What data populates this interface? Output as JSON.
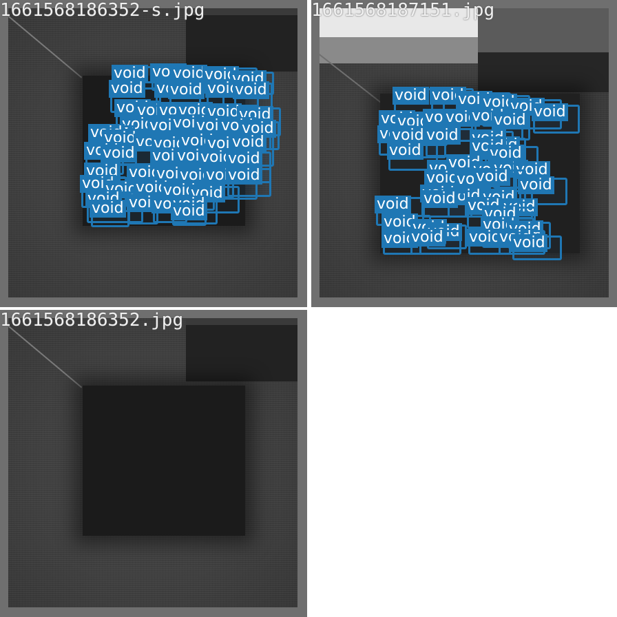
{
  "label_text": "void",
  "annotation_color": "#1f77b4",
  "tiles": [
    {
      "title": "1661568186352-s.jpg"
    },
    {
      "title": "1661568187151.jpg"
    },
    {
      "title": "1661568186352.jpg"
    }
  ]
}
